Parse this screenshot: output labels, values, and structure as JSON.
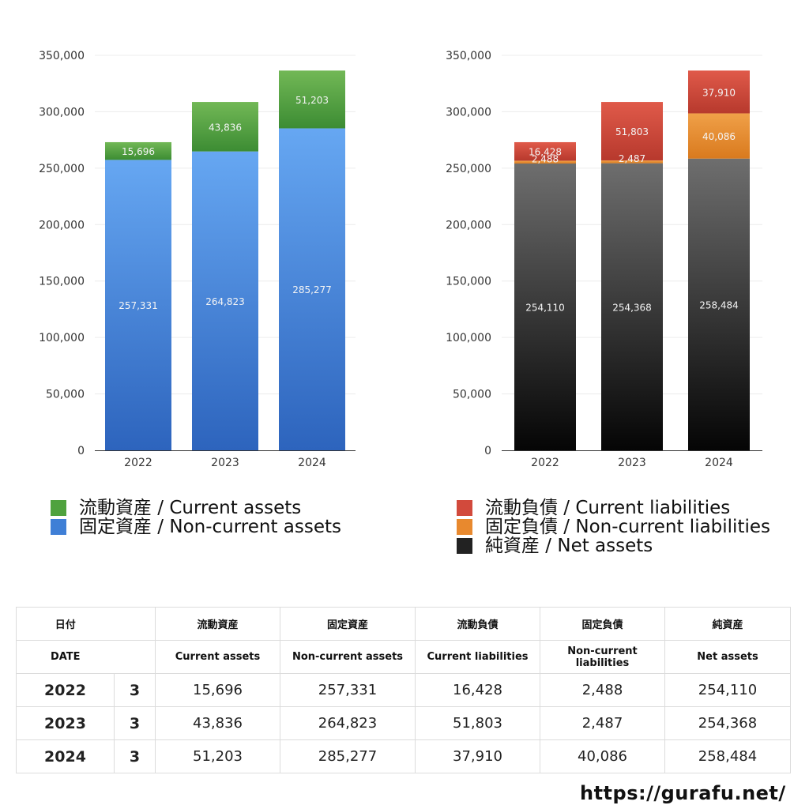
{
  "chart_data": [
    {
      "type": "bar",
      "stacked": true,
      "categories": [
        "2022",
        "2023",
        "2024"
      ],
      "ylim": [
        0,
        350000
      ],
      "yticks": [
        "0",
        "50,000",
        "100,000",
        "150,000",
        "200,000",
        "250,000",
        "300,000",
        "350,000"
      ],
      "grid": true,
      "series": [
        {
          "name": "固定資産 / Non-current assets",
          "values": [
            257331,
            264823,
            285277
          ],
          "labels": [
            "257,331",
            "264,823",
            "285,277"
          ],
          "color_top": "#66a7f2",
          "color_bottom": "#2d64bd"
        },
        {
          "name": "流動資産 / Current assets",
          "values": [
            15696,
            43836,
            51203
          ],
          "labels": [
            "15,696",
            "43,836",
            "51,203"
          ],
          "color_top": "#72b856",
          "color_bottom": "#3c8c33"
        }
      ],
      "legend": [
        "流動資産 / Current assets",
        "固定資産 / Non-current assets"
      ],
      "legend_colors": [
        "#4fa23e",
        "#3f7fd6"
      ]
    },
    {
      "type": "bar",
      "stacked": true,
      "categories": [
        "2022",
        "2023",
        "2024"
      ],
      "ylim": [
        0,
        350000
      ],
      "yticks": [
        "0",
        "50,000",
        "100,000",
        "150,000",
        "200,000",
        "250,000",
        "300,000",
        "350,000"
      ],
      "grid": true,
      "series": [
        {
          "name": "純資産 / Net assets",
          "values": [
            254110,
            254368,
            258484
          ],
          "labels": [
            "254,110",
            "254,368",
            "258,484"
          ],
          "color_top": "#6e6e6e",
          "color_bottom": "#050505"
        },
        {
          "name": "固定負債 / Non-current liabilities",
          "values": [
            2488,
            2487,
            40086
          ],
          "labels": [
            "2,488",
            "2,487",
            "40,086"
          ],
          "color_top": "#f0a048",
          "color_bottom": "#d97a1e"
        },
        {
          "name": "流動負債 / Current liabilities",
          "values": [
            16428,
            51803,
            37910
          ],
          "labels": [
            "16,428",
            "51,803",
            "37,910"
          ],
          "color_top": "#e05a4a",
          "color_bottom": "#b7392d"
        }
      ],
      "legend": [
        "流動負債 / Current liabilities",
        "固定負債 / Non-current liabilities",
        "純資産 / Net assets"
      ],
      "legend_colors": [
        "#d24a3c",
        "#e8892e",
        "#222222"
      ]
    }
  ],
  "table": {
    "header_jp": [
      "日付",
      "流動資産",
      "固定資産",
      "流動負債",
      "固定負債",
      "純資産"
    ],
    "header_en": [
      "DATE",
      "Current assets",
      "Non-current assets",
      "Current liabilities",
      "Non-current liabilities",
      "Net assets"
    ],
    "rows": [
      {
        "year": "2022",
        "month": "3",
        "ca": "15,696",
        "nca": "257,331",
        "cl": "16,428",
        "ncl": "2,488",
        "na": "254,110"
      },
      {
        "year": "2023",
        "month": "3",
        "ca": "43,836",
        "nca": "264,823",
        "cl": "51,803",
        "ncl": "2,487",
        "na": "254,368"
      },
      {
        "year": "2024",
        "month": "3",
        "ca": "51,203",
        "nca": "285,277",
        "cl": "37,910",
        "ncl": "40,086",
        "na": "258,484"
      }
    ]
  },
  "footer": {
    "url": "https://gurafu.net/"
  }
}
